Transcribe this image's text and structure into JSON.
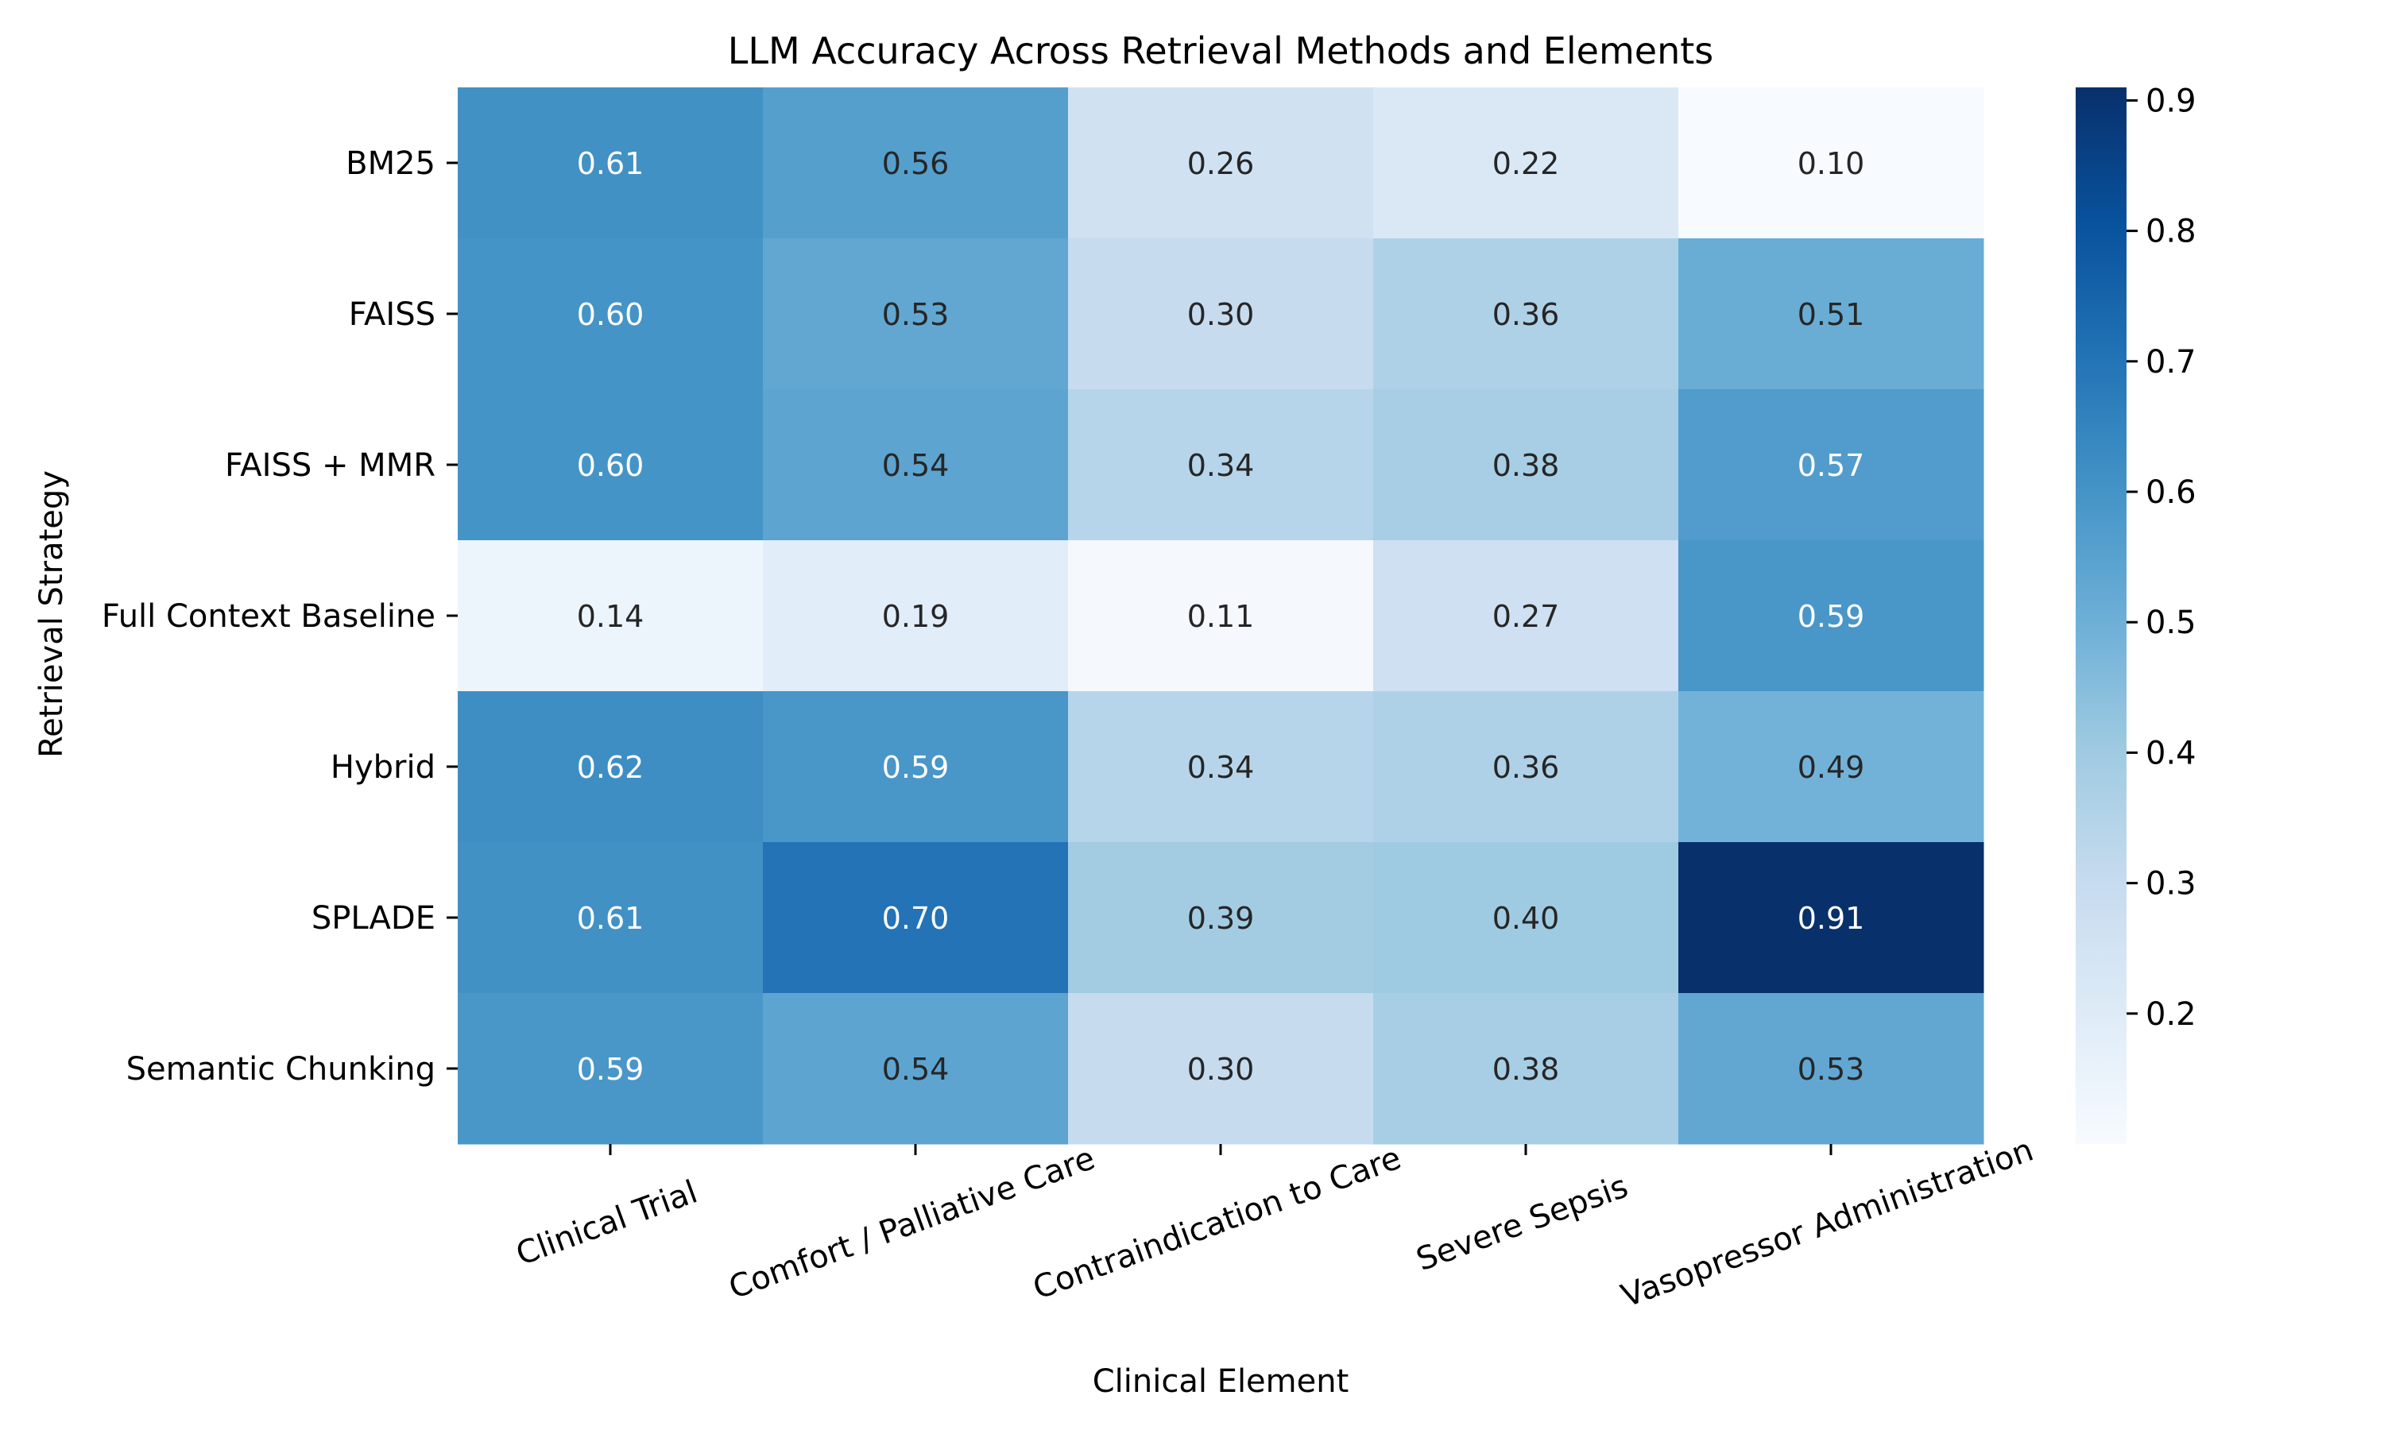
{
  "chart_data": {
    "type": "heatmap",
    "title": "LLM Accuracy Across Retrieval Methods and Elements",
    "xlabel": "Clinical Element",
    "ylabel": "Retrieval Strategy",
    "columns": [
      "Clinical Trial",
      "Comfort / Palliative Care",
      "Contraindication to Care",
      "Severe Sepsis",
      "Vasopressor Administration"
    ],
    "rows": [
      "BM25",
      "FAISS",
      "FAISS + MMR",
      "Full Context Baseline",
      "Hybrid",
      "SPLADE",
      "Semantic Chunking"
    ],
    "values": [
      [
        0.61,
        0.56,
        0.26,
        0.22,
        0.1
      ],
      [
        0.6,
        0.53,
        0.3,
        0.36,
        0.51
      ],
      [
        0.6,
        0.54,
        0.34,
        0.38,
        0.57
      ],
      [
        0.14,
        0.19,
        0.11,
        0.27,
        0.59
      ],
      [
        0.62,
        0.59,
        0.34,
        0.36,
        0.49
      ],
      [
        0.61,
        0.7,
        0.39,
        0.4,
        0.91
      ],
      [
        0.59,
        0.54,
        0.3,
        0.38,
        0.53
      ]
    ],
    "value_format": "0.00",
    "colormap": "Blues",
    "colormap_stops": [
      "#f7fbff",
      "#deebf7",
      "#c6dbef",
      "#9ecae1",
      "#6baed6",
      "#4292c6",
      "#2171b5",
      "#08519c",
      "#08306b"
    ],
    "vmin": 0.1,
    "vmax": 0.91,
    "colorbar_ticks": [
      0.2,
      0.3,
      0.4,
      0.5,
      0.6,
      0.7,
      0.8,
      0.9
    ],
    "colorbar_tick_labels": [
      "0.2",
      "0.3",
      "0.4",
      "0.5",
      "0.6",
      "0.7",
      "0.8",
      "0.9"
    ],
    "xtick_rotation_deg": 20,
    "annotation_light_color": "#ffffff",
    "annotation_dark_color": "#262626"
  }
}
